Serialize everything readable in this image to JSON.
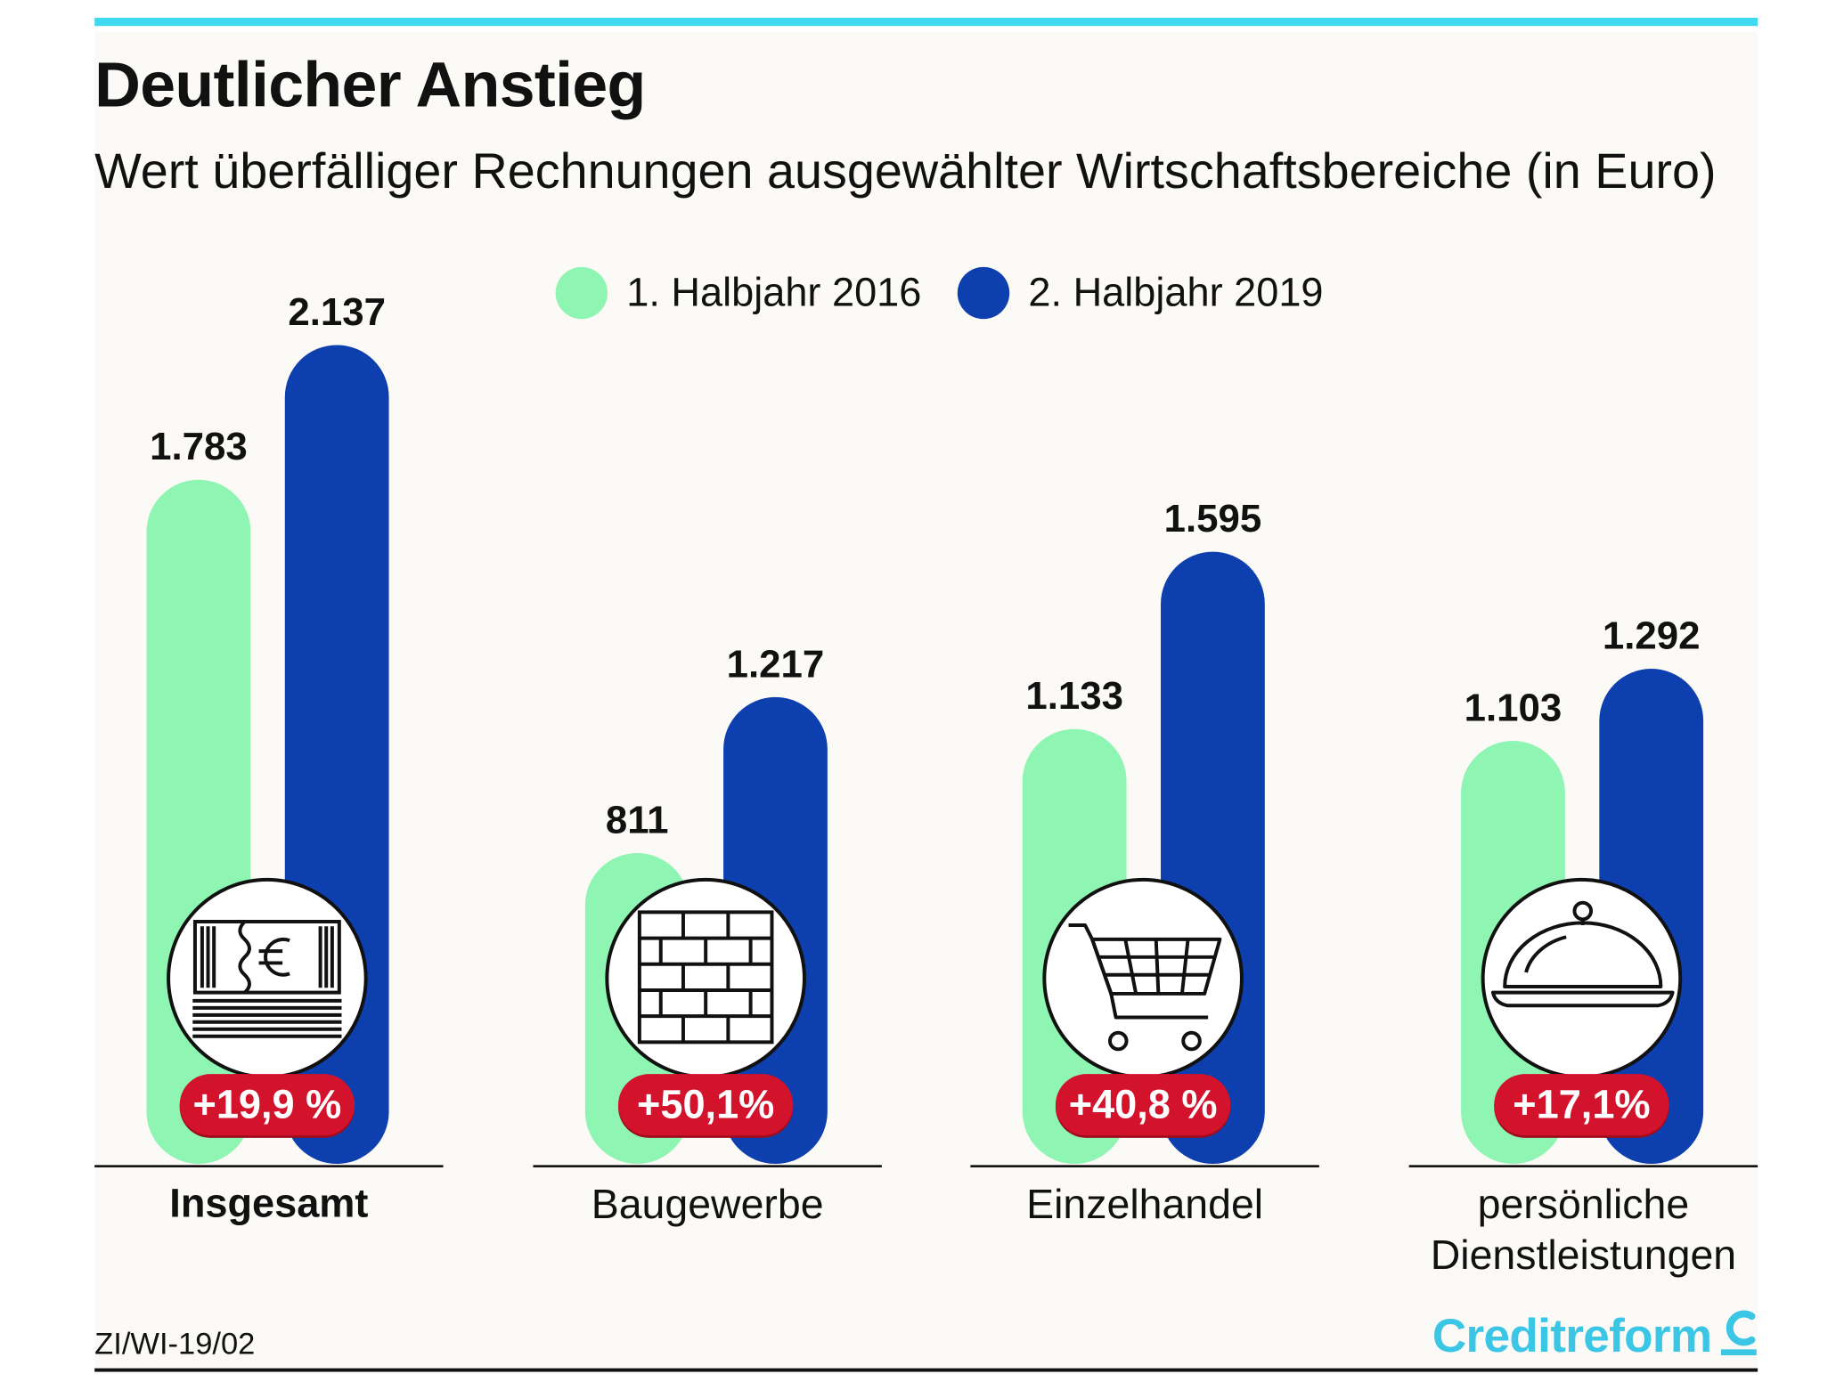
{
  "chart_data": {
    "type": "bar",
    "title": "Deutlicher Anstieg",
    "subtitle": "Wert überfälliger Rechnungen ausgewählter Wirtschaftsbereiche (in Euro)",
    "categories": [
      "Insgesamt",
      "Baugewerbe",
      "Einzelhandel",
      "persönliche Dienstleistungen"
    ],
    "series": [
      {
        "name": "1. Halbjahr 2016",
        "values": [
          1783,
          811,
          1133,
          1103
        ],
        "value_labels": [
          "1.783",
          "811",
          "1.133",
          "1.103"
        ]
      },
      {
        "name": "2. Halbjahr 2019",
        "values": [
          2137,
          1217,
          1595,
          1292
        ],
        "value_labels": [
          "2.137",
          "1.217",
          "1.595",
          "1.292"
        ]
      }
    ],
    "change_labels": [
      "+19,9 %",
      "+50,1%",
      "+40,8 %",
      "+17,1%"
    ],
    "category_icons": [
      "euro-banknotes-icon",
      "brick-wall-icon",
      "shopping-cart-icon",
      "food-cloche-icon"
    ],
    "xlabel": "",
    "ylabel": "",
    "grid": false
  },
  "footer": {
    "code": "ZI/WI-19/02",
    "brand": "Creditreform"
  },
  "colors": {
    "series_h1_2016": "#8ef5b2",
    "series_h2_2019": "#0e3faf",
    "accent_rule": "#3fd9f0",
    "change_badge": "#d3122b",
    "brand": "#3cc6e6"
  }
}
